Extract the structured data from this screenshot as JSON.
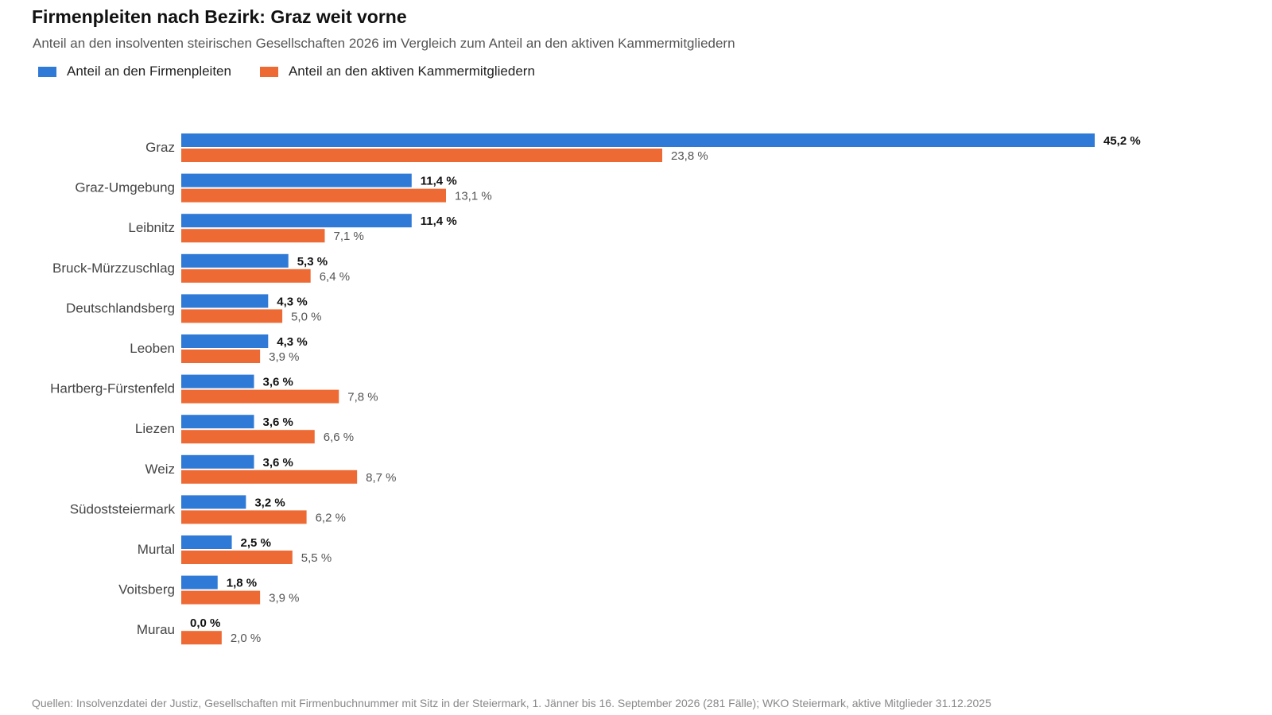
{
  "title": "Firmenpleiten nach Bezirk: Graz weit vorne",
  "subtitle": "Anteil an den insolventen steirischen Gesellschaften 2026 im Vergleich zum Anteil an den aktiven Kammermitgliedern",
  "source": "Quellen: Insolvenzdatei der Justiz, Gesellschaften mit Firmenbuchnummer mit Sitz in der Steiermark, 1. Jänner bis 16. September 2026 (281 Fälle); WKO Steiermark, aktive Mitglieder 31.12.2025",
  "chart_data": {
    "type": "bar",
    "orientation": "horizontal",
    "title": "Firmenpleiten nach Bezirk: Graz weit vorne",
    "subtitle": "Anteil an den insolventen steirischen Gesellschaften 2026 im Vergleich zum Anteil an den aktiven Kammermitgliedern",
    "legend_position": "top-left",
    "grid": false,
    "unit": "%",
    "xlim": [
      0,
      45.2
    ],
    "categories": [
      "Graz",
      "Graz-Umgebung",
      "Leibnitz",
      "Bruck-Mürzzuschlag",
      "Deutschlandsberg",
      "Leoben",
      "Hartberg-Fürstenfeld",
      "Liezen",
      "Weiz",
      "Südoststeiermark",
      "Murtal",
      "Voitsberg",
      "Murau"
    ],
    "series": [
      {
        "name": "Anteil an den Firmenpleiten",
        "color": "#2f7ad6",
        "values": [
          45.2,
          11.4,
          11.4,
          5.3,
          4.3,
          4.3,
          3.6,
          3.6,
          3.6,
          3.2,
          2.5,
          1.8,
          0.0
        ],
        "labels": [
          "45,2 %",
          "11,4 %",
          "11,4 %",
          "5,3 %",
          "4,3 %",
          "4,3 %",
          "3,6 %",
          "3,6 %",
          "3,6 %",
          "3,2 %",
          "2,5 %",
          "1,8 %",
          "0,0 %"
        ]
      },
      {
        "name": "Anteil an den aktiven Kammermitgliedern",
        "color": "#ee6a34",
        "values": [
          23.8,
          13.1,
          7.1,
          6.4,
          5.0,
          3.9,
          7.8,
          6.6,
          8.7,
          6.2,
          5.5,
          3.9,
          2.0
        ],
        "labels": [
          "23,8 %",
          "13,1 %",
          "7,1 %",
          "6,4 %",
          "5,0 %",
          "3,9 %",
          "7,8 %",
          "6,6 %",
          "8,7 %",
          "6,2 %",
          "5,5 %",
          "3,9 %",
          "2,0 %"
        ]
      }
    ]
  }
}
